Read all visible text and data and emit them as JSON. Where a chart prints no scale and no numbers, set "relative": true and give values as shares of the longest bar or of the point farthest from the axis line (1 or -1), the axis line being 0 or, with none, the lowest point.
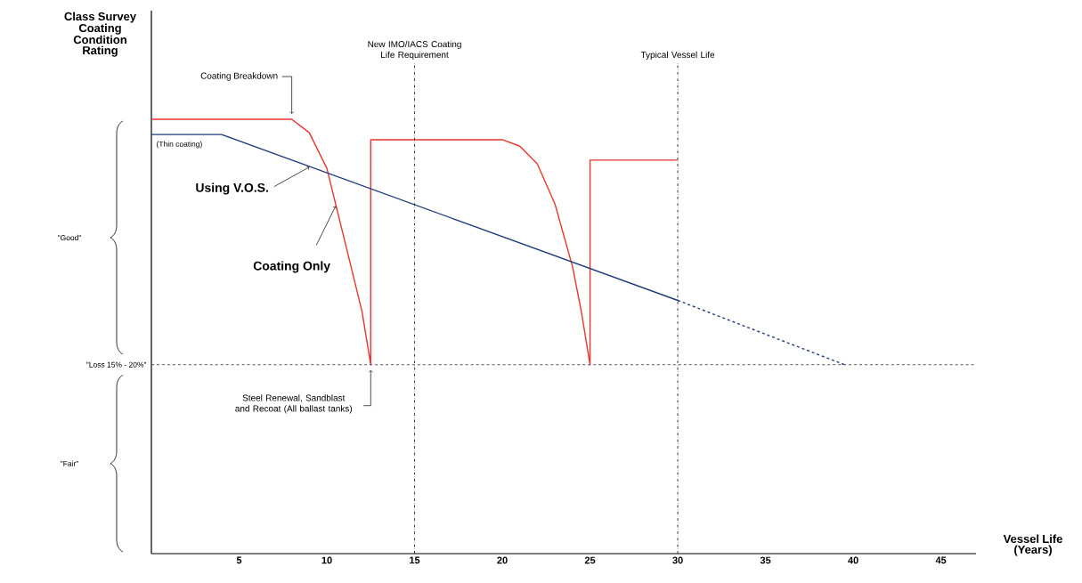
{
  "chart_data": {
    "type": "line",
    "relative": true,
    "title": null,
    "xlabel": "Vessel Life (Years)",
    "xlim": [
      0,
      47
    ],
    "xticks": [
      5,
      10,
      15,
      20,
      25,
      30,
      35,
      40,
      45
    ],
    "series": [
      {
        "name": "Coating Only",
        "color": "#e8362d",
        "x": [
          0,
          8,
          9,
          10,
          11,
          12,
          12.5,
          12.5,
          20,
          21,
          22,
          23,
          24,
          24.5,
          25,
          25,
          30
        ],
        "values": [
          1,
          1,
          0.969,
          0.887,
          0.723,
          0.558,
          0.435,
          0.953,
          0.953,
          0.938,
          0.897,
          0.805,
          0.661,
          0.558,
          0.435,
          0.906,
          0.906
        ]
      },
      {
        "name": "Using V.O.S.",
        "color": "#1f3d7a",
        "x": [
          0,
          4,
          30
        ],
        "values": [
          0.965,
          0.965,
          0.583
        ]
      },
      {
        "color": "#1f3d7a",
        "x": [
          30,
          39.5
        ],
        "values": [
          0.583,
          0.435
        ],
        "line_style": "dashed"
      }
    ],
    "ref_lines": [
      {
        "axis": "y",
        "value": 0.435,
        "label": "\"Loss 15% - 20%\"",
        "line_style": "dashed",
        "color": "#444444"
      },
      {
        "axis": "x",
        "value": 15,
        "label": "New IMO/IACS Coating Life Requirement",
        "line_style": "dashdot",
        "color": "#222222"
      },
      {
        "axis": "x",
        "value": 30,
        "label": "Typical Vessel Life",
        "line_style": "dashdot",
        "color": "#222222"
      }
    ],
    "annotations": [
      {
        "text": "Coating Breakdown",
        "x": 8,
        "y": 1
      },
      {
        "text": "(Thin coating)",
        "x": 0,
        "y": 0.965
      },
      "Class Survey Coating Condition Rating",
      "Steel Renewal, Sandblast and Recoat (All ballast tanks)",
      "\"Good\"",
      "\"Fair\""
    ]
  }
}
